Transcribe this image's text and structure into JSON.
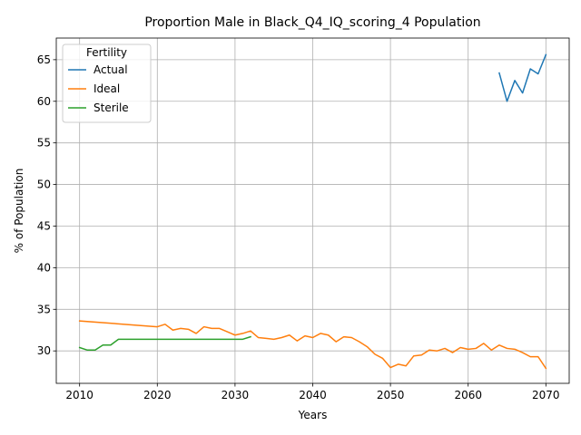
{
  "chart_data": {
    "type": "line",
    "title": "Proportion Male in Black_Q4_IQ_scoring_4 Population",
    "xlabel": "Years",
    "ylabel": "% of Population",
    "xlim": [
      2007,
      2073
    ],
    "ylim": [
      26.1,
      67.6
    ],
    "xticks": [
      2010,
      2020,
      2030,
      2040,
      2050,
      2060,
      2070
    ],
    "yticks": [
      30,
      35,
      40,
      45,
      50,
      55,
      60,
      65
    ],
    "grid": true,
    "legend": {
      "title": "Fertility",
      "placement": "top-left"
    },
    "series": [
      {
        "name": "Actual",
        "color": "#1f77b4",
        "x": [
          2064,
          2065,
          2066,
          2067,
          2068,
          2069,
          2070
        ],
        "values": [
          63.4,
          60.0,
          62.5,
          61.0,
          63.9,
          63.3,
          65.6
        ]
      },
      {
        "name": "Ideal",
        "color": "#ff7f0e",
        "x": [
          2010,
          2020,
          2021,
          2022,
          2023,
          2024,
          2025,
          2026,
          2027,
          2028,
          2029,
          2030,
          2031,
          2032,
          2033,
          2034,
          2035,
          2036,
          2037,
          2038,
          2039,
          2040,
          2041,
          2042,
          2043,
          2044,
          2045,
          2046,
          2047,
          2048,
          2049,
          2050,
          2051,
          2052,
          2053,
          2054,
          2055,
          2056,
          2057,
          2058,
          2059,
          2060,
          2061,
          2062,
          2063,
          2064,
          2065,
          2066,
          2067,
          2068,
          2069,
          2070
        ],
        "values": [
          33.6,
          32.9,
          33.2,
          32.5,
          32.7,
          32.6,
          32.1,
          32.9,
          32.7,
          32.7,
          32.3,
          31.9,
          32.1,
          32.4,
          31.6,
          31.5,
          31.4,
          31.6,
          31.9,
          31.2,
          31.8,
          31.6,
          32.1,
          31.9,
          31.1,
          31.7,
          31.6,
          31.1,
          30.5,
          29.6,
          29.1,
          28.0,
          28.4,
          28.2,
          29.4,
          29.5,
          30.1,
          30.0,
          30.3,
          29.8,
          30.4,
          30.2,
          30.3,
          30.9,
          30.1,
          30.7,
          30.3,
          30.2,
          29.8,
          29.3,
          29.3,
          27.9
        ]
      },
      {
        "name": "Sterile",
        "color": "#2ca02c",
        "x": [
          2010,
          2011,
          2012,
          2013,
          2014,
          2015,
          2016,
          2017,
          2018,
          2019,
          2020,
          2021,
          2022,
          2023,
          2024,
          2025,
          2026,
          2027,
          2028,
          2029,
          2030,
          2031,
          2032
        ],
        "values": [
          30.4,
          30.1,
          30.1,
          30.7,
          30.7,
          31.4,
          31.4,
          31.4,
          31.4,
          31.4,
          31.4,
          31.4,
          31.4,
          31.4,
          31.4,
          31.4,
          31.4,
          31.4,
          31.4,
          31.4,
          31.4,
          31.4,
          31.7
        ]
      }
    ]
  }
}
